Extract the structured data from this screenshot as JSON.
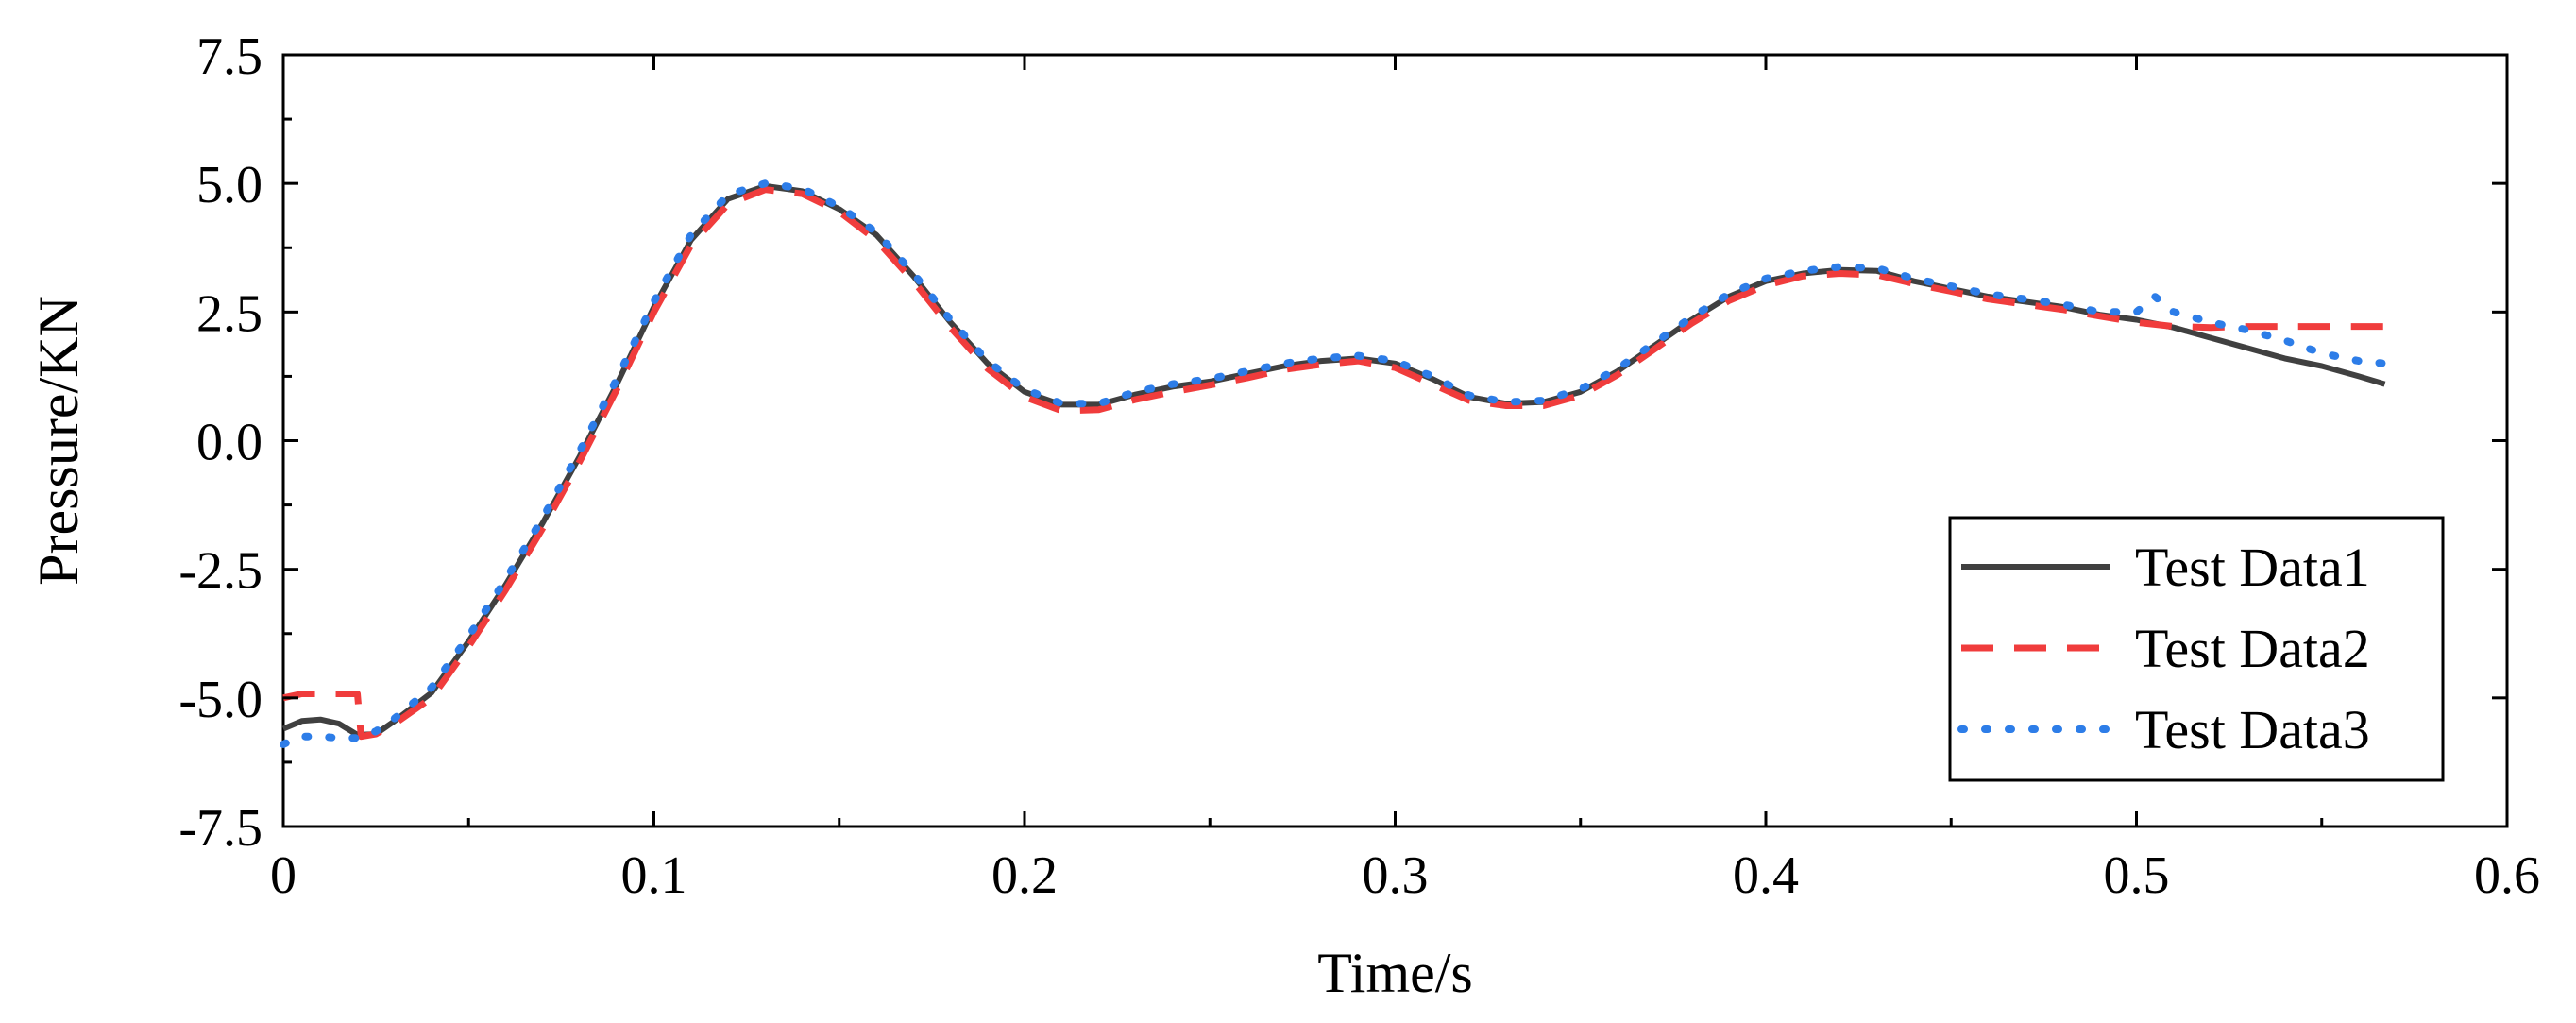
{
  "chart_data": {
    "type": "line",
    "title": "",
    "xlabel": "Time/s",
    "ylabel": "Pressure/KN",
    "xlim": [
      0,
      0.6
    ],
    "ylim": [
      -7.5,
      7.5
    ],
    "x_ticks": [
      0,
      0.1,
      0.2,
      0.3,
      0.4,
      0.5,
      0.6
    ],
    "x_tick_labels": [
      "0",
      "0.1",
      "0.2",
      "0.3",
      "0.4",
      "0.5",
      "0.6"
    ],
    "y_ticks": [
      -7.5,
      -5.0,
      -2.5,
      0.0,
      2.5,
      5.0,
      7.5
    ],
    "y_tick_labels": [
      "-7.5",
      "-5.0",
      "-2.5",
      "0.0",
      "2.5",
      "5.0",
      "7.5"
    ],
    "grid": false,
    "legend_position": "bottom-right",
    "series": [
      {
        "name": "Test Data1",
        "color": "#404040",
        "style": "solid",
        "points": [
          [
            0.0,
            -5.6
          ],
          [
            0.005,
            -5.45
          ],
          [
            0.01,
            -5.42
          ],
          [
            0.015,
            -5.5
          ],
          [
            0.02,
            -5.72
          ],
          [
            0.025,
            -5.7
          ],
          [
            0.03,
            -5.45
          ],
          [
            0.04,
            -4.9
          ],
          [
            0.05,
            -3.9
          ],
          [
            0.06,
            -2.8
          ],
          [
            0.07,
            -1.6
          ],
          [
            0.08,
            -0.3
          ],
          [
            0.09,
            1.1
          ],
          [
            0.1,
            2.6
          ],
          [
            0.11,
            3.9
          ],
          [
            0.12,
            4.7
          ],
          [
            0.13,
            4.95
          ],
          [
            0.14,
            4.85
          ],
          [
            0.15,
            4.5
          ],
          [
            0.16,
            4.0
          ],
          [
            0.17,
            3.2
          ],
          [
            0.18,
            2.3
          ],
          [
            0.19,
            1.5
          ],
          [
            0.2,
            0.95
          ],
          [
            0.21,
            0.7
          ],
          [
            0.22,
            0.7
          ],
          [
            0.23,
            0.9
          ],
          [
            0.24,
            1.05
          ],
          [
            0.25,
            1.15
          ],
          [
            0.26,
            1.3
          ],
          [
            0.27,
            1.45
          ],
          [
            0.28,
            1.55
          ],
          [
            0.29,
            1.6
          ],
          [
            0.3,
            1.5
          ],
          [
            0.31,
            1.2
          ],
          [
            0.32,
            0.85
          ],
          [
            0.33,
            0.72
          ],
          [
            0.34,
            0.75
          ],
          [
            0.35,
            0.95
          ],
          [
            0.36,
            1.35
          ],
          [
            0.37,
            1.85
          ],
          [
            0.38,
            2.35
          ],
          [
            0.39,
            2.8
          ],
          [
            0.4,
            3.1
          ],
          [
            0.41,
            3.25
          ],
          [
            0.42,
            3.32
          ],
          [
            0.43,
            3.3
          ],
          [
            0.44,
            3.1
          ],
          [
            0.45,
            2.95
          ],
          [
            0.46,
            2.8
          ],
          [
            0.47,
            2.7
          ],
          [
            0.48,
            2.6
          ],
          [
            0.49,
            2.45
          ],
          [
            0.5,
            2.35
          ],
          [
            0.51,
            2.2
          ],
          [
            0.52,
            2.0
          ],
          [
            0.53,
            1.8
          ],
          [
            0.54,
            1.6
          ],
          [
            0.55,
            1.45
          ],
          [
            0.56,
            1.25
          ],
          [
            0.567,
            1.1
          ]
        ]
      },
      {
        "name": "Test Data2",
        "color": "#f03c3c",
        "style": "dashed",
        "points": [
          [
            0.0,
            -5.0
          ],
          [
            0.005,
            -4.92
          ],
          [
            0.01,
            -4.92
          ],
          [
            0.02,
            -4.92
          ],
          [
            0.021,
            -5.75
          ],
          [
            0.025,
            -5.7
          ],
          [
            0.03,
            -5.5
          ],
          [
            0.04,
            -5.0
          ],
          [
            0.05,
            -4.0
          ],
          [
            0.06,
            -2.9
          ],
          [
            0.07,
            -1.7
          ],
          [
            0.08,
            -0.4
          ],
          [
            0.09,
            1.0
          ],
          [
            0.1,
            2.5
          ],
          [
            0.11,
            3.8
          ],
          [
            0.12,
            4.6
          ],
          [
            0.13,
            4.88
          ],
          [
            0.14,
            4.8
          ],
          [
            0.15,
            4.45
          ],
          [
            0.16,
            3.9
          ],
          [
            0.17,
            3.1
          ],
          [
            0.18,
            2.2
          ],
          [
            0.19,
            1.4
          ],
          [
            0.2,
            0.85
          ],
          [
            0.21,
            0.58
          ],
          [
            0.22,
            0.6
          ],
          [
            0.23,
            0.8
          ],
          [
            0.24,
            0.95
          ],
          [
            0.25,
            1.08
          ],
          [
            0.26,
            1.22
          ],
          [
            0.27,
            1.38
          ],
          [
            0.28,
            1.48
          ],
          [
            0.29,
            1.55
          ],
          [
            0.3,
            1.42
          ],
          [
            0.31,
            1.1
          ],
          [
            0.32,
            0.78
          ],
          [
            0.33,
            0.68
          ],
          [
            0.34,
            0.68
          ],
          [
            0.35,
            0.88
          ],
          [
            0.36,
            1.28
          ],
          [
            0.37,
            1.78
          ],
          [
            0.38,
            2.28
          ],
          [
            0.39,
            2.72
          ],
          [
            0.4,
            3.02
          ],
          [
            0.41,
            3.2
          ],
          [
            0.42,
            3.25
          ],
          [
            0.43,
            3.22
          ],
          [
            0.44,
            3.05
          ],
          [
            0.45,
            2.9
          ],
          [
            0.46,
            2.75
          ],
          [
            0.47,
            2.65
          ],
          [
            0.48,
            2.55
          ],
          [
            0.49,
            2.42
          ],
          [
            0.5,
            2.3
          ],
          [
            0.51,
            2.22
          ],
          [
            0.52,
            2.2
          ],
          [
            0.53,
            2.22
          ],
          [
            0.54,
            2.22
          ],
          [
            0.55,
            2.22
          ],
          [
            0.56,
            2.22
          ],
          [
            0.567,
            2.22
          ]
        ]
      },
      {
        "name": "Test Data3",
        "color": "#2d7de8",
        "style": "dotted",
        "points": [
          [
            0.0,
            -5.9
          ],
          [
            0.005,
            -5.75
          ],
          [
            0.01,
            -5.75
          ],
          [
            0.015,
            -5.78
          ],
          [
            0.02,
            -5.78
          ],
          [
            0.025,
            -5.65
          ],
          [
            0.03,
            -5.4
          ],
          [
            0.04,
            -4.8
          ],
          [
            0.05,
            -3.8
          ],
          [
            0.06,
            -2.7
          ],
          [
            0.07,
            -1.5
          ],
          [
            0.08,
            -0.2
          ],
          [
            0.09,
            1.2
          ],
          [
            0.1,
            2.7
          ],
          [
            0.11,
            4.0
          ],
          [
            0.12,
            4.78
          ],
          [
            0.13,
            5.0
          ],
          [
            0.14,
            4.9
          ],
          [
            0.15,
            4.55
          ],
          [
            0.16,
            4.05
          ],
          [
            0.17,
            3.25
          ],
          [
            0.18,
            2.35
          ],
          [
            0.19,
            1.55
          ],
          [
            0.2,
            1.0
          ],
          [
            0.21,
            0.72
          ],
          [
            0.22,
            0.72
          ],
          [
            0.23,
            0.95
          ],
          [
            0.24,
            1.1
          ],
          [
            0.25,
            1.2
          ],
          [
            0.26,
            1.35
          ],
          [
            0.27,
            1.5
          ],
          [
            0.28,
            1.6
          ],
          [
            0.29,
            1.65
          ],
          [
            0.3,
            1.55
          ],
          [
            0.31,
            1.25
          ],
          [
            0.32,
            0.88
          ],
          [
            0.33,
            0.75
          ],
          [
            0.34,
            0.78
          ],
          [
            0.35,
            1.0
          ],
          [
            0.36,
            1.4
          ],
          [
            0.37,
            1.9
          ],
          [
            0.38,
            2.4
          ],
          [
            0.39,
            2.85
          ],
          [
            0.4,
            3.15
          ],
          [
            0.41,
            3.3
          ],
          [
            0.42,
            3.38
          ],
          [
            0.43,
            3.35
          ],
          [
            0.44,
            3.15
          ],
          [
            0.45,
            3.0
          ],
          [
            0.46,
            2.85
          ],
          [
            0.47,
            2.75
          ],
          [
            0.48,
            2.65
          ],
          [
            0.49,
            2.5
          ],
          [
            0.5,
            2.5
          ],
          [
            0.505,
            2.8
          ],
          [
            0.51,
            2.5
          ],
          [
            0.52,
            2.3
          ],
          [
            0.53,
            2.15
          ],
          [
            0.54,
            1.95
          ],
          [
            0.55,
            1.7
          ],
          [
            0.56,
            1.55
          ],
          [
            0.567,
            1.5
          ]
        ]
      }
    ]
  }
}
